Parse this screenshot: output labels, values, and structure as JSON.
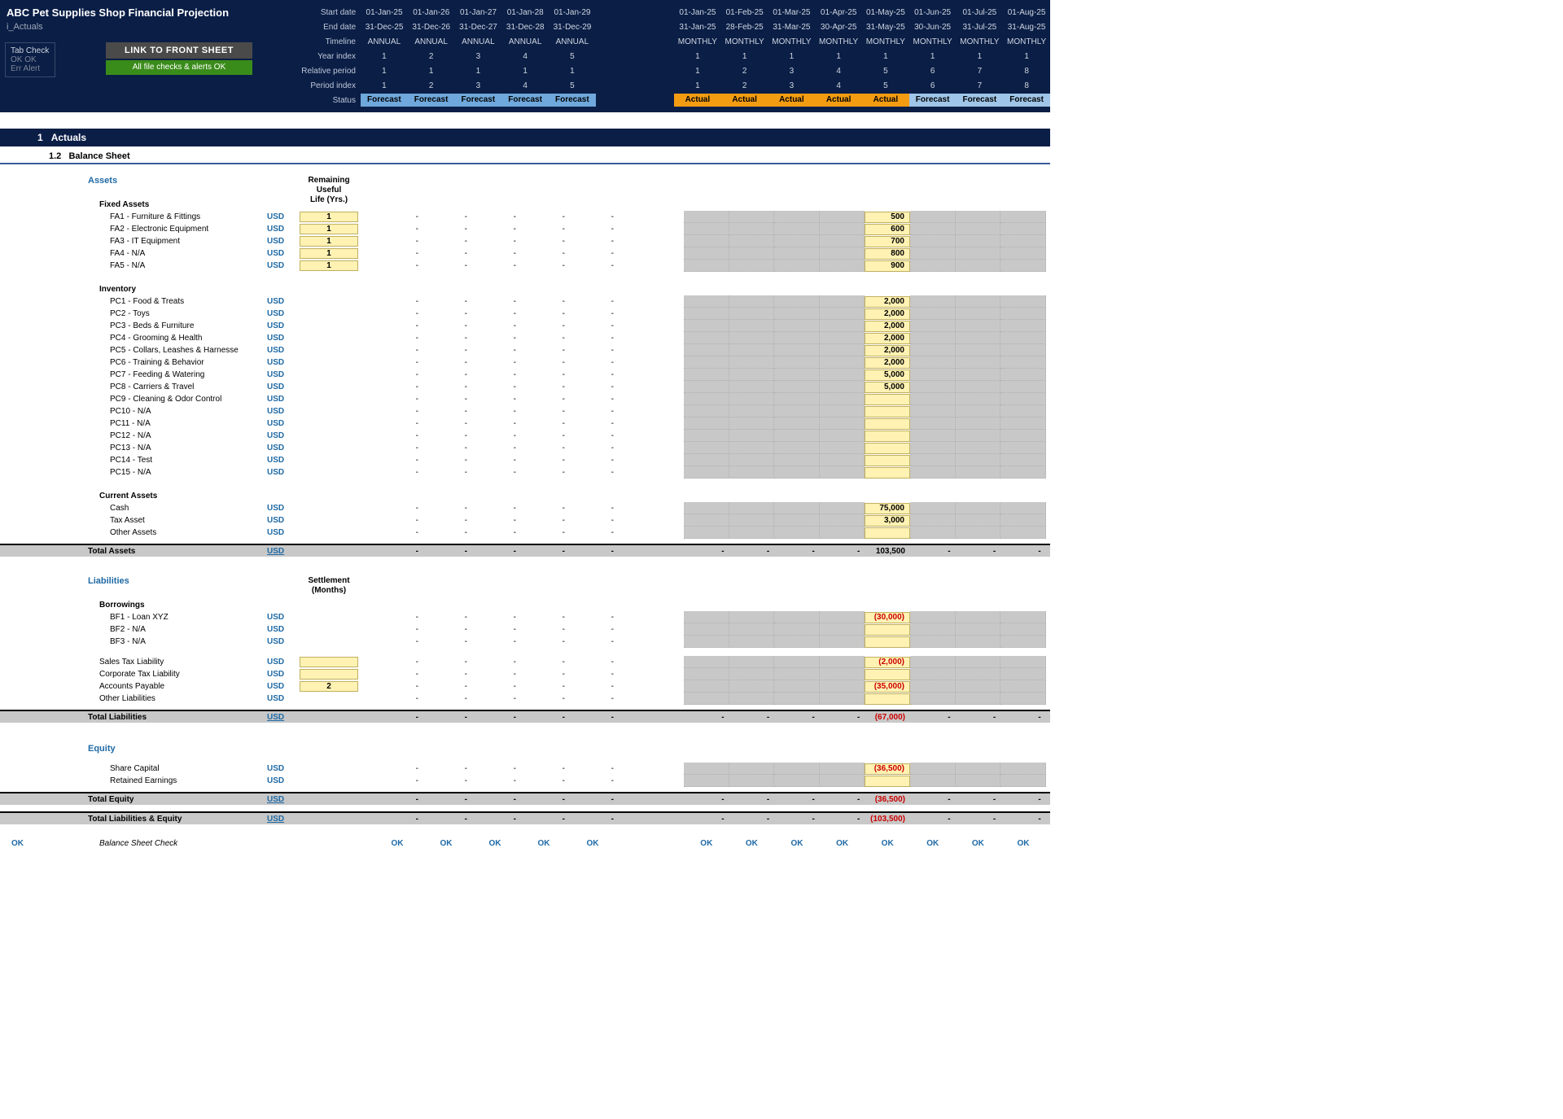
{
  "title": "ABC Pet Supplies Shop Financial Projection",
  "sheet_name": "i_Actuals",
  "header": {
    "rows": [
      {
        "label": "Start date",
        "annual": [
          "01-Jan-25",
          "01-Jan-26",
          "01-Jan-27",
          "01-Jan-28",
          "01-Jan-29"
        ],
        "monthly": [
          "01-Jan-25",
          "01-Feb-25",
          "01-Mar-25",
          "01-Apr-25",
          "01-May-25",
          "01-Jun-25",
          "01-Jul-25",
          "01-Aug-25"
        ]
      },
      {
        "label": "End date",
        "annual": [
          "31-Dec-25",
          "31-Dec-26",
          "31-Dec-27",
          "31-Dec-28",
          "31-Dec-29"
        ],
        "monthly": [
          "31-Jan-25",
          "28-Feb-25",
          "31-Mar-25",
          "30-Apr-25",
          "31-May-25",
          "30-Jun-25",
          "31-Jul-25",
          "31-Aug-25"
        ]
      },
      {
        "label": "Timeline",
        "annual": [
          "ANNUAL",
          "ANNUAL",
          "ANNUAL",
          "ANNUAL",
          "ANNUAL"
        ],
        "monthly": [
          "MONTHLY",
          "MONTHLY",
          "MONTHLY",
          "MONTHLY",
          "MONTHLY",
          "MONTHLY",
          "MONTHLY",
          "MONTHLY"
        ]
      },
      {
        "label": "Year index",
        "annual": [
          "1",
          "2",
          "3",
          "4",
          "5"
        ],
        "monthly": [
          "1",
          "1",
          "1",
          "1",
          "1",
          "1",
          "1",
          "1"
        ]
      },
      {
        "label": "Relative period",
        "annual": [
          "1",
          "1",
          "1",
          "1",
          "1"
        ],
        "monthly": [
          "1",
          "2",
          "3",
          "4",
          "5",
          "6",
          "7",
          "8"
        ]
      },
      {
        "label": "Period index",
        "annual": [
          "1",
          "2",
          "3",
          "4",
          "5"
        ],
        "monthly": [
          "1",
          "2",
          "3",
          "4",
          "5",
          "6",
          "7",
          "8"
        ]
      }
    ],
    "status_label": "Status",
    "status_annual": [
      "Forecast",
      "Forecast",
      "Forecast",
      "Forecast",
      "Forecast"
    ],
    "status_monthly": [
      "Actual",
      "Actual",
      "Actual",
      "Actual",
      "Actual",
      "Forecast",
      "Forecast",
      "Forecast"
    ]
  },
  "tab_check": {
    "title": "Tab Check",
    "line1": "OK   OK",
    "line2": "Err   Alert"
  },
  "buttons": {
    "front": "LINK TO FRONT SHEET",
    "alerts": "All file checks & alerts OK"
  },
  "section": {
    "num": "1",
    "title": "Actuals",
    "sub_num": "1.2",
    "sub_title": "Balance Sheet"
  },
  "columns": {
    "remaining": "Remaining Useful\nLife (Yrs.)",
    "settlement": "Settlement\n(Months)"
  },
  "assets": {
    "title": "Assets",
    "fixed_title": "Fixed Assets",
    "fixed": [
      {
        "label": "FA1 - Furniture & Fittings",
        "input": "1",
        "val": "500"
      },
      {
        "label": "FA2 - Electronic Equipment",
        "input": "1",
        "val": "600"
      },
      {
        "label": "FA3 - IT Equipment",
        "input": "1",
        "val": "700"
      },
      {
        "label": "FA4 - N/A",
        "input": "1",
        "val": "800"
      },
      {
        "label": "FA5 - N/A",
        "input": "1",
        "val": "900"
      }
    ],
    "inventory_title": "Inventory",
    "inventory": [
      {
        "label": "PC1 - Food & Treats",
        "val": "2,000"
      },
      {
        "label": "PC2 - Toys",
        "val": "2,000"
      },
      {
        "label": "PC3 - Beds & Furniture",
        "val": "2,000"
      },
      {
        "label": "PC4 - Grooming & Health",
        "val": "2,000"
      },
      {
        "label": "PC5 - Collars, Leashes & Harnesse",
        "val": "2,000"
      },
      {
        "label": "PC6 - Training & Behavior",
        "val": "2,000"
      },
      {
        "label": "PC7 - Feeding & Watering",
        "val": "5,000"
      },
      {
        "label": "PC8 - Carriers & Travel",
        "val": "5,000"
      },
      {
        "label": "PC9 - Cleaning & Odor Control",
        "val": ""
      },
      {
        "label": "PC10 - N/A",
        "val": ""
      },
      {
        "label": "PC11 - N/A",
        "val": ""
      },
      {
        "label": "PC12 - N/A",
        "val": ""
      },
      {
        "label": "PC13 - N/A",
        "val": ""
      },
      {
        "label": "PC14 - Test",
        "val": ""
      },
      {
        "label": "PC15 - N/A",
        "val": ""
      }
    ],
    "current_title": "Current Assets",
    "current": [
      {
        "label": "Cash",
        "val": "75,000"
      },
      {
        "label": "Tax Asset",
        "val": "3,000"
      },
      {
        "label": "Other Assets",
        "val": ""
      }
    ],
    "total_label": "Total Assets",
    "total_val": "103,500"
  },
  "liabilities": {
    "title": "Liabilities",
    "borrowings_title": "Borrowings",
    "borrowings": [
      {
        "label": "BF1 - Loan XYZ",
        "val": "(30,000)",
        "neg": true
      },
      {
        "label": "BF2 - N/A",
        "val": ""
      },
      {
        "label": "BF3 - N/A",
        "val": ""
      }
    ],
    "other": [
      {
        "label": "Sales Tax Liability",
        "input": "",
        "val": "(2,000)",
        "neg": true
      },
      {
        "label": "Corporate Tax Liability",
        "input": "",
        "val": ""
      },
      {
        "label": "Accounts Payable",
        "input": "2",
        "val": "(35,000)",
        "neg": true
      },
      {
        "label": "Other Liabilities",
        "val": ""
      }
    ],
    "total_label": "Total Liabilities",
    "total_val": "(67,000)"
  },
  "equity": {
    "title": "Equity",
    "items": [
      {
        "label": "Share Capital",
        "val": "(36,500)",
        "neg": true
      },
      {
        "label": "Retained Earnings",
        "val": ""
      }
    ],
    "total_label": "Total Equity",
    "total_val": "(36,500)",
    "grand_label": "Total Liabilities & Equity",
    "grand_val": "(103,500)"
  },
  "check": {
    "ok_left": "OK",
    "label": "Balance Sheet Check",
    "ok": "OK"
  },
  "unit": "USD",
  "dash": "-"
}
